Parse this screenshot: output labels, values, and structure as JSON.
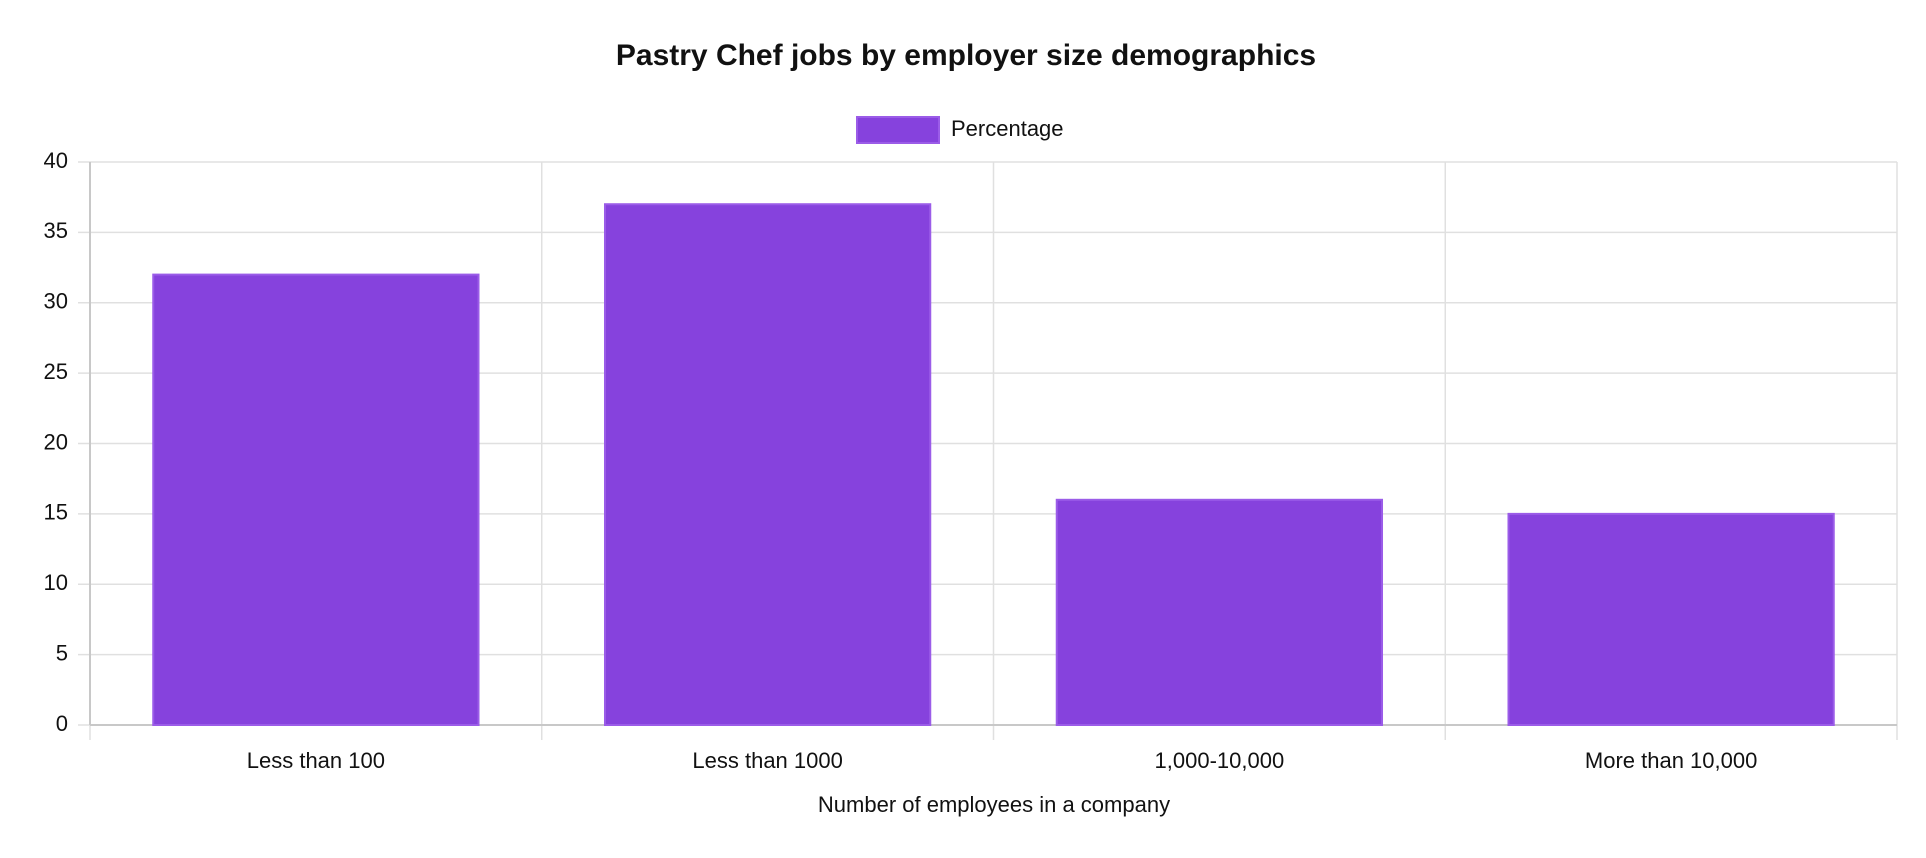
{
  "chart_data": {
    "type": "bar",
    "title": "Pastry Chef jobs by employer size demographics",
    "categories": [
      "Less than 100",
      "Less than 1000",
      "1,000-10,000",
      "More than 10,000"
    ],
    "series": [
      {
        "name": "Percentage",
        "color": "#8642dd",
        "values": [
          32,
          37,
          16,
          15
        ]
      }
    ],
    "x_label": "Number of employees in a company",
    "ylim": [
      0,
      40
    ],
    "yticks": [
      0,
      5,
      10,
      15,
      20,
      25,
      30,
      35,
      40
    ],
    "grid": true,
    "legend": "top"
  }
}
